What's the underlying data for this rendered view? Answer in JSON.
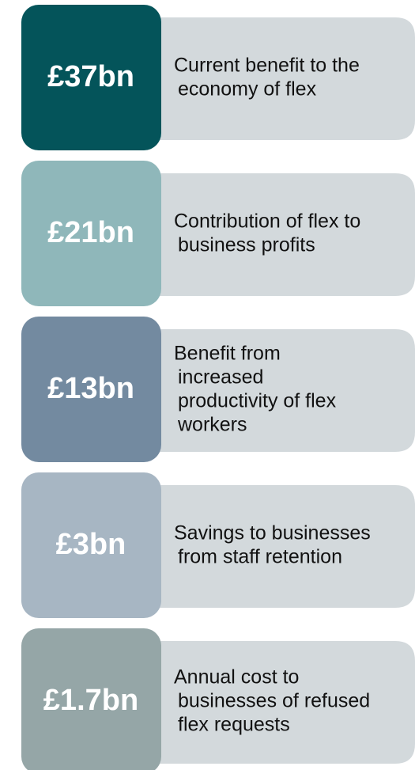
{
  "items": [
    {
      "value": "£37bn",
      "lines": [
        "Current benefit to the",
        "economy of flex"
      ]
    },
    {
      "value": "£21bn",
      "lines": [
        "Contribution of flex to",
        "business profits"
      ]
    },
    {
      "value": "£13bn",
      "lines": [
        "Benefit from",
        "increased",
        "productivity of flex",
        "workers"
      ]
    },
    {
      "value": "£3bn",
      "lines": [
        "Savings to businesses",
        "from staff retention"
      ]
    },
    {
      "value": "£1.7bn",
      "lines": [
        "Annual cost to",
        "businesses of refused",
        "flex requests"
      ]
    }
  ]
}
